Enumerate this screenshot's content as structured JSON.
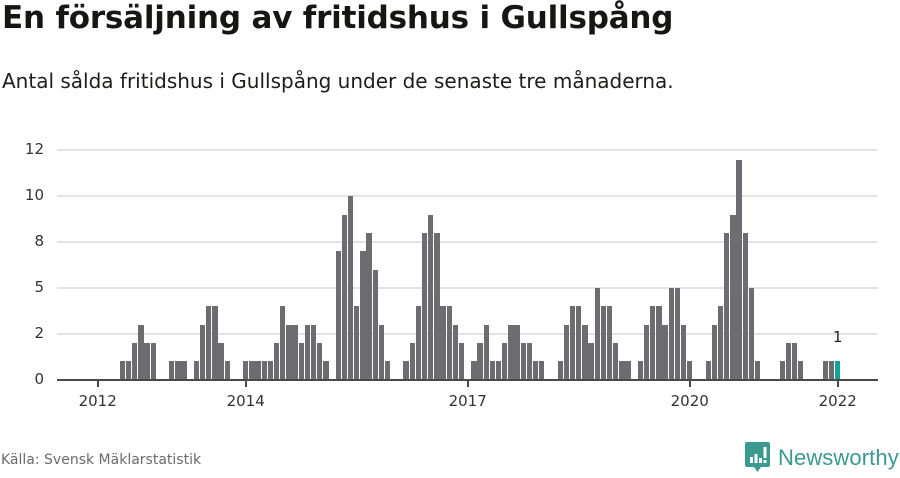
{
  "header": {
    "title": "En försäljning av fritidshus i Gullspång",
    "subtitle": "Antal sålda fritidshus i Gullspång under de senaste tre månaderna."
  },
  "footer": {
    "source": "Källa: Svensk Mäklarstatistik",
    "brand": "Newsworthy",
    "brand_icon": "bar-chart-speech-bubble-icon"
  },
  "colors": {
    "bar": "#6d6c71",
    "highlight": "#16a39a",
    "brand": "#3a9a8f",
    "grid": "#e3e3e3",
    "axis": "#4a4a4a"
  },
  "chart_data": {
    "type": "bar",
    "title": "En försäljning av fritidshus i Gullspång",
    "subtitle": "Antal sålda fritidshus i Gullspång under de senaste tre månaderna.",
    "xlabel": "",
    "ylabel": "",
    "ylim": [
      0,
      12.5
    ],
    "grid": true,
    "legend": null,
    "y_ticks": [
      {
        "value": 0,
        "label": "0"
      },
      {
        "value": 2.5,
        "label": "2"
      },
      {
        "value": 5,
        "label": "5"
      },
      {
        "value": 7.5,
        "label": "8"
      },
      {
        "value": 10,
        "label": "10"
      },
      {
        "value": 12.5,
        "label": "12"
      }
    ],
    "x_ticks": [
      {
        "month": "2012-01",
        "label": "2012"
      },
      {
        "month": "2014-01",
        "label": "2014"
      },
      {
        "month": "2017-01",
        "label": "2017"
      },
      {
        "month": "2020-01",
        "label": "2020"
      },
      {
        "month": "2022-01",
        "label": "2022"
      }
    ],
    "x_range": [
      "2011-07",
      "2022-08"
    ],
    "start_month": "2012-01",
    "categories": [
      "2012-01",
      "2012-02",
      "2012-03",
      "2012-04",
      "2012-05",
      "2012-06",
      "2012-07",
      "2012-08",
      "2012-09",
      "2012-10",
      "2012-11",
      "2012-12",
      "2013-01",
      "2013-02",
      "2013-03",
      "2013-04",
      "2013-05",
      "2013-06",
      "2013-07",
      "2013-08",
      "2013-09",
      "2013-10",
      "2013-11",
      "2013-12",
      "2014-01",
      "2014-02",
      "2014-03",
      "2014-04",
      "2014-05",
      "2014-06",
      "2014-07",
      "2014-08",
      "2014-09",
      "2014-10",
      "2014-11",
      "2014-12",
      "2015-01",
      "2015-02",
      "2015-03",
      "2015-04",
      "2015-05",
      "2015-06",
      "2015-07",
      "2015-08",
      "2015-09",
      "2015-10",
      "2015-11",
      "2015-12",
      "2016-01",
      "2016-02",
      "2016-03",
      "2016-04",
      "2016-05",
      "2016-06",
      "2016-07",
      "2016-08",
      "2016-09",
      "2016-10",
      "2016-11",
      "2016-12",
      "2017-01",
      "2017-02",
      "2017-03",
      "2017-04",
      "2017-05",
      "2017-06",
      "2017-07",
      "2017-08",
      "2017-09",
      "2017-10",
      "2017-11",
      "2017-12",
      "2018-01",
      "2018-02",
      "2018-03",
      "2018-04",
      "2018-05",
      "2018-06",
      "2018-07",
      "2018-08",
      "2018-09",
      "2018-10",
      "2018-11",
      "2018-12",
      "2019-01",
      "2019-02",
      "2019-03",
      "2019-04",
      "2019-05",
      "2019-06",
      "2019-07",
      "2019-08",
      "2019-09",
      "2019-10",
      "2019-11",
      "2019-12",
      "2020-01",
      "2020-02",
      "2020-03",
      "2020-04",
      "2020-05",
      "2020-06",
      "2020-07",
      "2020-08",
      "2020-09",
      "2020-10",
      "2020-11",
      "2020-12",
      "2021-01",
      "2021-02",
      "2021-03",
      "2021-04",
      "2021-05",
      "2021-06",
      "2021-07",
      "2021-08",
      "2021-09",
      "2021-10",
      "2021-11",
      "2021-12",
      "2022-01"
    ],
    "values": [
      0,
      0,
      0,
      0,
      1,
      1,
      2,
      3,
      2,
      2,
      0,
      0,
      1,
      1,
      1,
      0,
      1,
      3,
      4,
      4,
      2,
      1,
      0,
      0,
      1,
      1,
      1,
      1,
      1,
      2,
      4,
      3,
      3,
      2,
      3,
      3,
      2,
      1,
      0,
      7,
      9,
      10,
      4,
      7,
      8,
      6,
      3,
      1,
      0,
      0,
      1,
      2,
      4,
      8,
      9,
      8,
      4,
      4,
      3,
      2,
      0,
      1,
      2,
      3,
      1,
      1,
      2,
      3,
      3,
      2,
      2,
      1,
      1,
      0,
      0,
      1,
      3,
      4,
      4,
      3,
      2,
      5,
      4,
      4,
      2,
      1,
      1,
      0,
      1,
      3,
      4,
      4,
      3,
      5,
      5,
      3,
      1,
      0,
      0,
      1,
      3,
      4,
      8,
      9,
      12,
      8,
      5,
      1,
      0,
      0,
      0,
      1,
      2,
      2,
      1,
      0,
      0,
      0,
      1,
      1,
      1
    ],
    "highlight": {
      "month": "2022-01",
      "value": 1,
      "label": "1"
    }
  }
}
